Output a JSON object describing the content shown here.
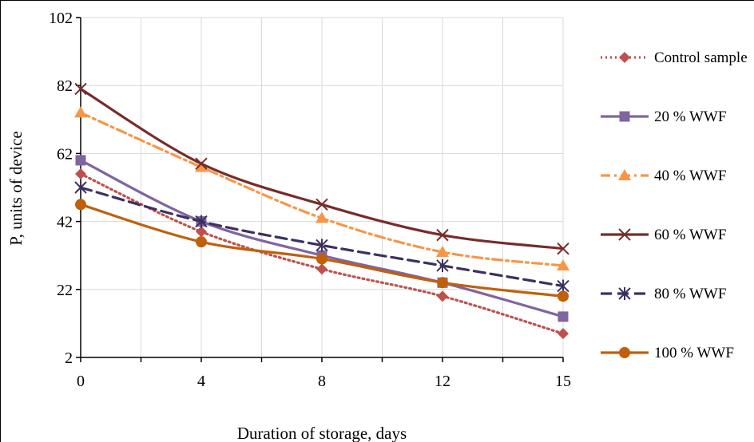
{
  "chart_data": {
    "type": "line",
    "title": "",
    "xlabel": "Duration of storage, days",
    "ylabel": "P, units of device",
    "x": [
      0,
      4,
      8,
      12,
      15
    ],
    "x_ticks": [
      "0",
      "4",
      "8",
      "12",
      "15"
    ],
    "y_ticks": [
      "2",
      "22",
      "42",
      "62",
      "82",
      "102"
    ],
    "ylim": [
      2,
      102
    ],
    "grid": "vertical and horizontal",
    "legend_position": "right",
    "series": [
      {
        "name": "Control sample",
        "values": [
          56,
          39,
          28,
          20,
          9
        ],
        "color": "#c0504d",
        "dash": "dotted",
        "marker": "diamond"
      },
      {
        "name": "20 % WWF",
        "values": [
          60,
          42,
          32,
          24,
          14
        ],
        "color": "#8064a2",
        "dash": "solid",
        "marker": "square"
      },
      {
        "name": "40 % WWF",
        "values": [
          74,
          58,
          43,
          33,
          29
        ],
        "color": "#f79646",
        "dash": "dash-dot",
        "marker": "triangle"
      },
      {
        "name": "60 % WWF",
        "values": [
          81,
          59,
          47,
          38,
          34
        ],
        "color": "#772c2a",
        "dash": "solid",
        "marker": "x"
      },
      {
        "name": "80 % WWF",
        "values": [
          52,
          42,
          35,
          29,
          23
        ],
        "color": "#3d3060",
        "dash": "dashed",
        "marker": "star"
      },
      {
        "name": "100 % WWF",
        "values": [
          47,
          36,
          31,
          24,
          20
        ],
        "color": "#c0600a",
        "dash": "solid",
        "marker": "circle"
      }
    ]
  }
}
